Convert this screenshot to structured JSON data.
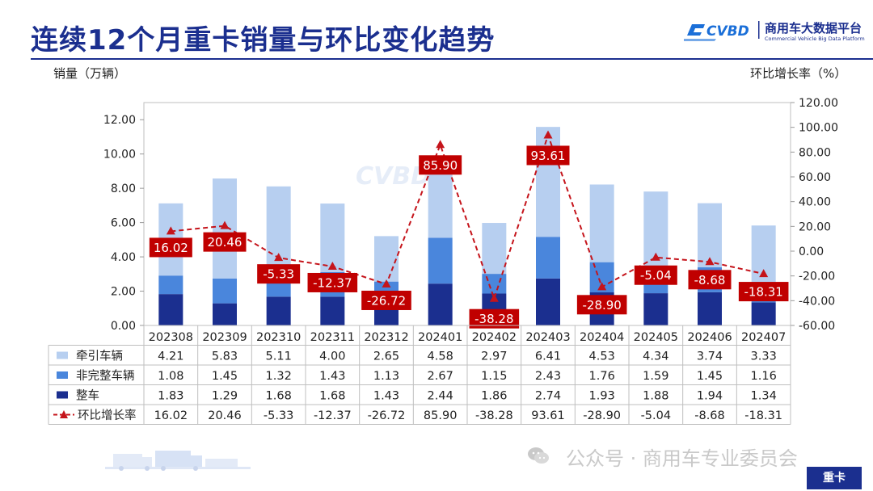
{
  "header": {
    "title": "连续12个月重卡销量与环比变化趋势",
    "logo_name": "商用车大数据平台",
    "logo_sub": "Commercial Vehicle Big Data Platform",
    "logo_mark": "CVBD"
  },
  "footer": {
    "wechat_text": "公众号 · 商用车专业委员会",
    "tag": "重卡"
  },
  "colors": {
    "tractor": "#b7cff0",
    "incomplete": "#4a86dc",
    "complete": "#1b2f8f",
    "mom_line": "#c5141b",
    "label_bg": "#c00000",
    "title": "#1b2f8f"
  },
  "chart_data": {
    "type": "bar",
    "stacked": true,
    "y_left_label": "销量（万辆）",
    "y_right_label": "环比增长率（%）",
    "ylim_left": [
      0,
      13.0
    ],
    "yticks_left": [
      "0.00",
      "2.00",
      "4.00",
      "6.00",
      "8.00",
      "10.00",
      "12.00"
    ],
    "ylim_right": [
      -60,
      120
    ],
    "yticks_right": [
      "-60.00",
      "-40.00",
      "-20.00",
      "0.00",
      "20.00",
      "40.00",
      "60.00",
      "80.00",
      "100.00",
      "120.00"
    ],
    "categories": [
      "202308",
      "202309",
      "202310",
      "202311",
      "202312",
      "202401",
      "202402",
      "202403",
      "202404",
      "202405",
      "202406",
      "202407"
    ],
    "series": [
      {
        "name": "牵引车辆",
        "type": "bar",
        "color": "#b7cff0",
        "values": [
          4.21,
          5.83,
          5.11,
          4.0,
          2.65,
          4.58,
          2.97,
          6.41,
          4.53,
          4.34,
          3.74,
          3.33
        ]
      },
      {
        "name": "非完整车辆",
        "type": "bar",
        "color": "#4a86dc",
        "values": [
          1.08,
          1.45,
          1.32,
          1.43,
          1.13,
          2.67,
          1.15,
          2.43,
          1.76,
          1.59,
          1.45,
          1.16
        ]
      },
      {
        "name": "整车",
        "type": "bar",
        "color": "#1b2f8f",
        "values": [
          1.83,
          1.29,
          1.68,
          1.68,
          1.43,
          2.44,
          1.86,
          2.74,
          1.93,
          1.88,
          1.94,
          1.34
        ]
      },
      {
        "name": "环比增长率",
        "type": "line",
        "axis": "right",
        "color": "#c5141b",
        "values": [
          16.02,
          20.46,
          -5.33,
          -12.37,
          -26.72,
          85.9,
          -38.28,
          93.61,
          -28.9,
          -5.04,
          -8.68,
          -18.31
        ]
      }
    ],
    "data_table": true,
    "legend": "table"
  }
}
